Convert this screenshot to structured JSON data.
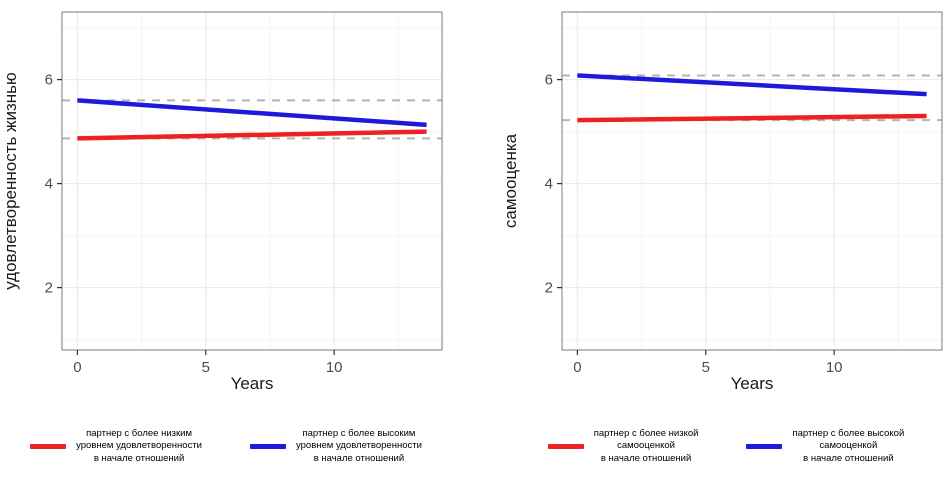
{
  "figure": {
    "background": "#ffffff",
    "panel_border_color": "#8f8f8f",
    "grid_major_color": "#f0e8ef",
    "grid_minor_color": "#f7f2f6",
    "tick_color": "#333333",
    "tick_label_color": "#4d4d4d",
    "axis_title_color": "#1a1a1a",
    "reference_line_color": "#b3b3b3"
  },
  "chart_data": [
    {
      "type": "line",
      "title": "",
      "xlabel": "Years",
      "ylabel": "удовлетворенность жизнью",
      "xlim": [
        -0.6,
        14.2
      ],
      "ylim": [
        0.8,
        7.3
      ],
      "xticks": [
        0,
        5,
        10
      ],
      "yticks": [
        2,
        4,
        6
      ],
      "xticks_minor": [
        2.5,
        7.5,
        12.5
      ],
      "yticks_minor": [
        1,
        3,
        5,
        7
      ],
      "grid": "on",
      "legend_position": "bottom",
      "reference_lines": [
        {
          "y": 5.6,
          "style": "dashed"
        },
        {
          "y": 4.87,
          "style": "dashed"
        }
      ],
      "series": [
        {
          "name": "партнер с более низким\nуровнем удовлетворенности\nв начале отношений",
          "color": "#ee2024",
          "x": [
            0,
            13.6
          ],
          "y": [
            4.87,
            5.0
          ]
        },
        {
          "name": "партнер с более высоким\nуровнем удовлетворенности\nв начале отношений",
          "color": "#1e1add",
          "x": [
            0,
            13.6
          ],
          "y": [
            5.6,
            5.13
          ]
        }
      ]
    },
    {
      "type": "line",
      "title": "",
      "xlabel": "Years",
      "ylabel": "самооценка",
      "xlim": [
        -0.6,
        14.2
      ],
      "ylim": [
        0.8,
        7.3
      ],
      "xticks": [
        0,
        5,
        10
      ],
      "yticks": [
        2,
        4,
        6
      ],
      "xticks_minor": [
        2.5,
        7.5,
        12.5
      ],
      "yticks_minor": [
        1,
        3,
        5,
        7
      ],
      "grid": "on",
      "legend_position": "bottom",
      "reference_lines": [
        {
          "y": 6.08,
          "style": "dashed"
        },
        {
          "y": 5.22,
          "style": "dashed"
        }
      ],
      "series": [
        {
          "name": "партнер с более низкой\nсамооценкой\nв начале отношений",
          "color": "#ee2024",
          "x": [
            0,
            13.6
          ],
          "y": [
            5.22,
            5.3
          ]
        },
        {
          "name": "партнер с более высокой\nсамооценкой\nв начале отношений",
          "color": "#1e1add",
          "x": [
            0,
            13.6
          ],
          "y": [
            6.08,
            5.72
          ]
        }
      ]
    }
  ]
}
